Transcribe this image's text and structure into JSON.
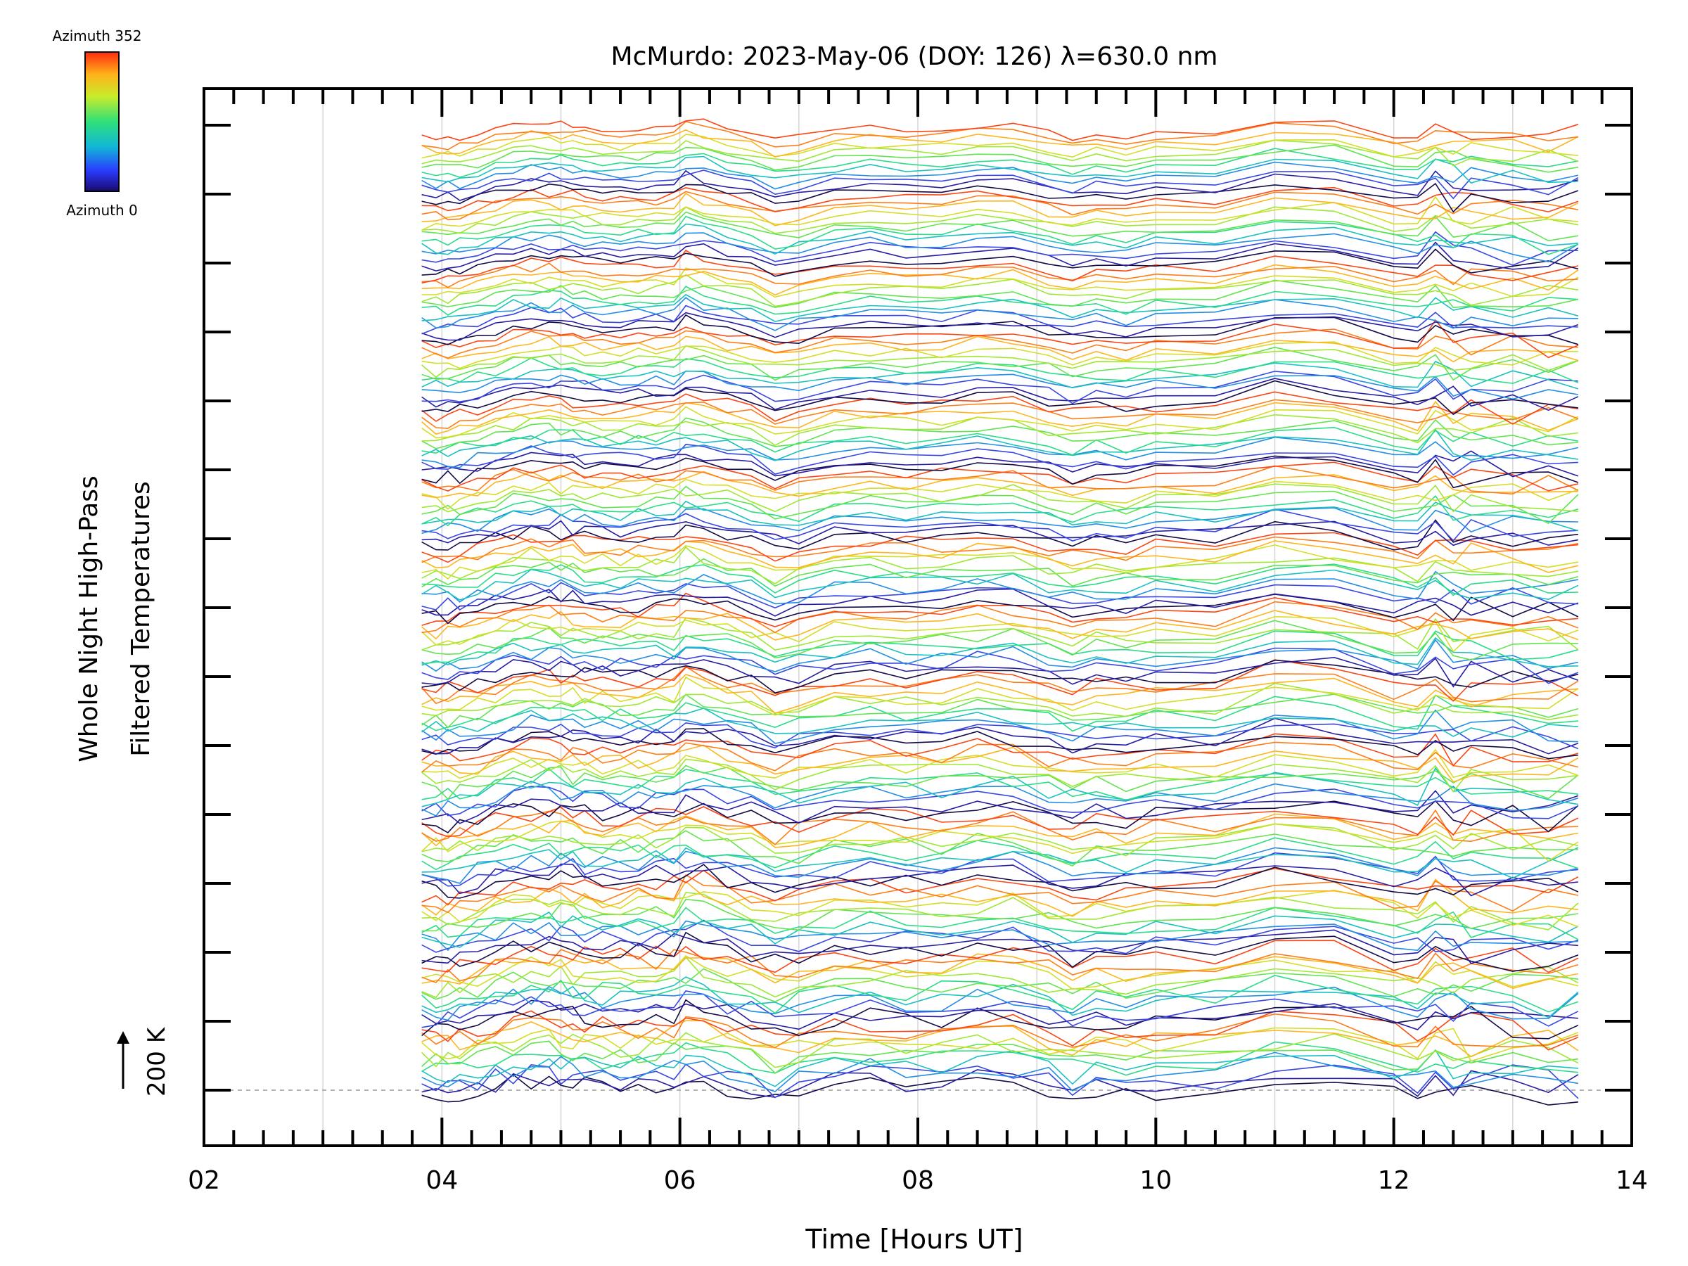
{
  "chart_data": {
    "type": "line",
    "title": "McMurdo: 2023-May-06 (DOY: 126) λ=630.0 nm",
    "xlabel": "Time [Hours UT]",
    "ylabel_line1": "Whole Night High-Pass",
    "ylabel_line2": "Filtered Temperatures",
    "xlim": [
      2,
      14
    ],
    "x_ticks": [
      "02",
      "04",
      "06",
      "08",
      "10",
      "12",
      "14"
    ],
    "x_tick_values": [
      2,
      4,
      6,
      8,
      10,
      12,
      14
    ],
    "x_minor_step": 0.25,
    "y_major_ticks": 15,
    "scale_marker": "200 K",
    "legend": {
      "title_top": "Azimuth 352",
      "title_bottom": "Azimuth 0",
      "colormap": "rainbow",
      "placement": "top-left"
    },
    "grid": "vertical at each hour",
    "data_start_hour": 3.83,
    "data_end hour": 13.55,
    "series_description": "Stacked high-pass filtered temperature traces, one per azimuth (0–352 deg), offset vertically; colour encodes azimuth",
    "offset_groups": 14,
    "traces_per_group": 12,
    "time_points": [
      3.83,
      3.95,
      4.05,
      4.15,
      4.3,
      4.45,
      4.6,
      4.75,
      4.9,
      5.0,
      5.1,
      5.2,
      5.35,
      5.5,
      5.65,
      5.8,
      5.95,
      6.05,
      6.2,
      6.4,
      6.6,
      6.8,
      7.0,
      7.3,
      7.6,
      7.9,
      8.2,
      8.5,
      8.8,
      9.1,
      9.3,
      9.5,
      9.75,
      10.0,
      10.5,
      11.0,
      11.5,
      12.0,
      12.2,
      12.35,
      12.5,
      12.65,
      13.0,
      13.3,
      13.55
    ],
    "colors": {
      "axis": "#000000",
      "grid": "#d6d6d6",
      "baseline": "#9a9a9a"
    }
  }
}
